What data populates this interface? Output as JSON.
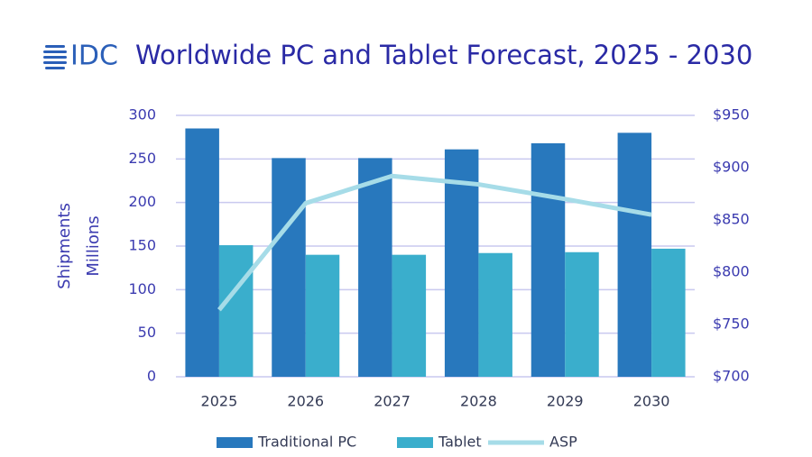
{
  "chart_data": {
    "type": "bar_line",
    "logo": "IDC",
    "title": "Worldwide PC and Tablet Forecast, 2025 - 2030",
    "y_axis_title": "Shipments",
    "y_axis_subtitle": "Millions",
    "categories": [
      "2025",
      "2026",
      "2027",
      "2028",
      "2029",
      "2030"
    ],
    "series": [
      {
        "name": "Traditional PC",
        "color": "#2878bd",
        "type": "bar",
        "values": [
          285,
          251,
          251,
          261,
          268,
          280
        ]
      },
      {
        "name": "Tablet",
        "color": "#3aaecc",
        "type": "bar",
        "values": [
          151,
          140,
          140,
          142,
          143,
          147
        ]
      },
      {
        "name": "ASP",
        "color": "#a6dce8",
        "type": "line",
        "axis": "y2",
        "values": [
          764,
          866,
          892,
          884,
          870,
          855
        ]
      }
    ],
    "ylim": [
      0,
      300
    ],
    "yticks": [
      0,
      50,
      100,
      150,
      200,
      250,
      300
    ],
    "y2lim": [
      700,
      950
    ],
    "y2ticks": [
      {
        "value": 700,
        "label": "$700"
      },
      {
        "value": 750,
        "label": "$750"
      },
      {
        "value": 800,
        "label": "$800"
      },
      {
        "value": 850,
        "label": "$850"
      },
      {
        "value": 900,
        "label": "$900"
      },
      {
        "value": 950,
        "label": "$950"
      }
    ],
    "grid": true,
    "legend": "bottom"
  }
}
